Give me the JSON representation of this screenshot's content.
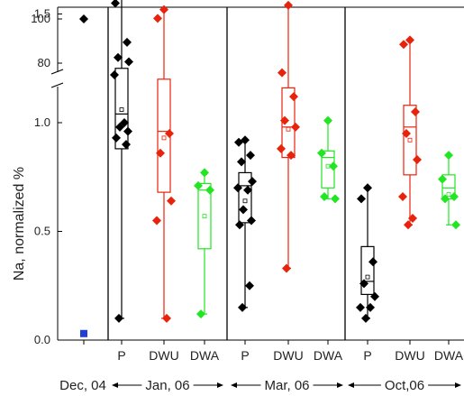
{
  "chart_data": {
    "type": "box",
    "ylabel": "Na, normalized %",
    "y_axis": {
      "lower_range": [
        0,
        1.7
      ],
      "upper_range": [
        78,
        102
      ],
      "break_between": [
        1.7,
        78
      ],
      "ticks_lower": [
        "0.0",
        "0.5",
        "1.0",
        "1.5"
      ],
      "tick_values_lower": [
        0,
        0.5,
        1.0,
        1.5
      ],
      "ticks_upper": [
        "80",
        "100"
      ],
      "tick_values_upper": [
        80,
        100
      ]
    },
    "categories": [
      "P",
      "DWU",
      "DWA"
    ],
    "periods": [
      {
        "label": "Dec, 04"
      },
      {
        "label": "Jan, 06"
      },
      {
        "label": "Mar, 06"
      },
      {
        "label": "Oct,06"
      }
    ],
    "series": [
      {
        "category": "P",
        "color": "#000000"
      },
      {
        "category": "DWU",
        "color": "#e8230c"
      },
      {
        "category": "DWA",
        "color": "#22e622"
      }
    ],
    "baseline_points": [
      {
        "period": "Dec, 04",
        "value": 100,
        "color": "#000000",
        "marker": "diamond"
      },
      {
        "period": "Dec, 04",
        "value": 0.03,
        "color": "#1f3fd6",
        "marker": "square"
      }
    ],
    "boxes": [
      {
        "period": "Jan, 06",
        "category": "P",
        "q1": 0.88,
        "median": 1.04,
        "q3": 1.25,
        "mean": 1.06,
        "whisker_low": 0.1,
        "whisker_high": 1.6,
        "points": [
          1.6,
          1.55,
          1.37,
          1.3,
          1.28,
          1.22,
          1.0,
          0.98,
          0.96,
          0.93,
          0.9,
          0.1
        ]
      },
      {
        "period": "Jan, 06",
        "category": "DWU",
        "q1": 0.68,
        "median": 0.96,
        "q3": 1.2,
        "mean": 0.93,
        "whisker_low": 0.1,
        "whisker_high": 1.52,
        "points": [
          1.52,
          1.48,
          0.95,
          0.86,
          0.64,
          0.55,
          0.1
        ]
      },
      {
        "period": "Jan, 06",
        "category": "DWA",
        "q1": 0.42,
        "median": 0.69,
        "q3": 0.72,
        "mean": 0.57,
        "whisker_low": 0.12,
        "whisker_high": 0.77,
        "points": [
          0.77,
          0.71,
          0.69,
          0.12
        ]
      },
      {
        "period": "Mar, 06",
        "category": "P",
        "q1": 0.54,
        "median": 0.71,
        "q3": 0.77,
        "mean": 0.64,
        "whisker_low": 0.15,
        "whisker_high": 0.92,
        "points": [
          0.92,
          0.91,
          0.85,
          0.82,
          0.73,
          0.7,
          0.69,
          0.6,
          0.55,
          0.53,
          0.25,
          0.15
        ]
      },
      {
        "period": "Mar, 06",
        "category": "DWU",
        "q1": 0.84,
        "median": 0.98,
        "q3": 1.16,
        "mean": 0.97,
        "whisker_low": 0.33,
        "whisker_high": 1.54,
        "points": [
          1.54,
          1.23,
          1.12,
          1.01,
          0.98,
          0.88,
          0.85,
          0.33
        ]
      },
      {
        "period": "Mar, 06",
        "category": "DWA",
        "q1": 0.7,
        "median": 0.84,
        "q3": 0.87,
        "mean": 0.8,
        "whisker_low": 0.65,
        "whisker_high": 1.01,
        "points": [
          1.01,
          0.86,
          0.8,
          0.66,
          0.65
        ]
      },
      {
        "period": "Oct,06",
        "category": "P",
        "q1": 0.21,
        "median": 0.27,
        "q3": 0.43,
        "mean": 0.29,
        "whisker_low": 0.1,
        "whisker_high": 0.7,
        "points": [
          0.7,
          0.65,
          0.36,
          0.26,
          0.2,
          0.15,
          0.15,
          0.1
        ]
      },
      {
        "period": "Oct,06",
        "category": "DWU",
        "q1": 0.76,
        "median": 0.98,
        "q3": 1.08,
        "mean": 0.92,
        "whisker_low": 0.53,
        "whisker_high": 1.38,
        "points": [
          1.38,
          1.36,
          1.05,
          0.95,
          0.83,
          0.66,
          0.56,
          0.53
        ]
      },
      {
        "period": "Oct,06",
        "category": "DWA",
        "q1": 0.65,
        "median": 0.7,
        "q3": 0.76,
        "mean": 0.67,
        "whisker_low": 0.53,
        "whisker_high": 0.85,
        "points": [
          0.85,
          0.74,
          0.66,
          0.65,
          0.53
        ]
      }
    ]
  }
}
